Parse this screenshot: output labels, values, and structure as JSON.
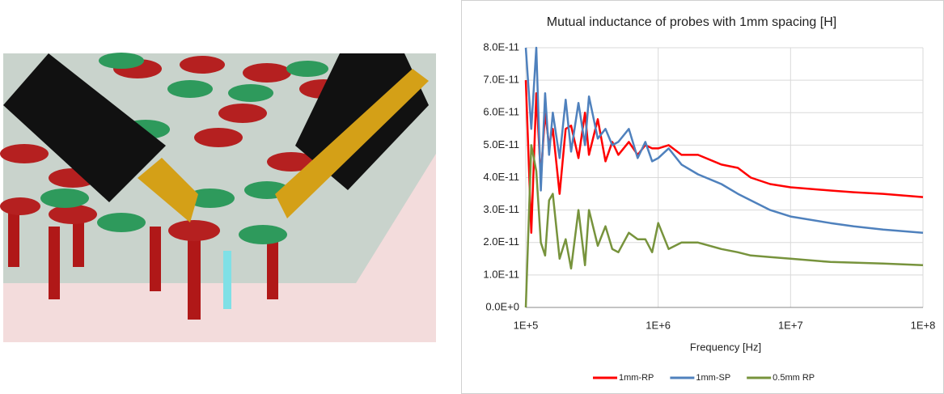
{
  "chart_data": {
    "type": "line",
    "title": "Mutual inductance of probes with 1mm spacing [H]",
    "x_label": "Frequency [Hz]",
    "x": [
      100000,
      110000,
      120000,
      130000,
      140000,
      150000,
      160000,
      180000,
      200000,
      220000,
      250000,
      280000,
      300000,
      350000,
      400000,
      450000,
      500000,
      600000,
      700000,
      800000,
      900000,
      1000000,
      1200000,
      1500000,
      2000000,
      3000000,
      4000000,
      5000000,
      7000000,
      10000000,
      20000000,
      30000000,
      50000000,
      100000000
    ],
    "series": [
      {
        "name": "1mm-RP",
        "color": "#ff0000",
        "values": [
          7e-11,
          2.3e-11,
          6.6e-11,
          4e-11,
          6e-11,
          5e-11,
          5.5e-11,
          3.5e-11,
          5.5e-11,
          5.6e-11,
          4.6e-11,
          6e-11,
          4.7e-11,
          5.8e-11,
          4.5e-11,
          5.1e-11,
          4.7e-11,
          5.1e-11,
          4.7e-11,
          5e-11,
          4.9e-11,
          4.9e-11,
          5e-11,
          4.7e-11,
          4.7e-11,
          4.4e-11,
          4.3e-11,
          4e-11,
          3.8e-11,
          3.7e-11,
          3.6e-11,
          3.55e-11,
          3.5e-11,
          3.4e-11
        ]
      },
      {
        "name": "1mm-SP",
        "color": "#4f81bd",
        "values": [
          8e-11,
          5.5e-11,
          8e-11,
          3.6e-11,
          6.6e-11,
          4.7e-11,
          6e-11,
          4.6e-11,
          6.4e-11,
          4.8e-11,
          6.3e-11,
          5e-11,
          6.5e-11,
          5.2e-11,
          5.5e-11,
          5e-11,
          5.1e-11,
          5.5e-11,
          4.6e-11,
          5.1e-11,
          4.5e-11,
          4.6e-11,
          4.9e-11,
          4.4e-11,
          4.1e-11,
          3.8e-11,
          3.5e-11,
          3.3e-11,
          3e-11,
          2.8e-11,
          2.6e-11,
          2.5e-11,
          2.4e-11,
          2.3e-11
        ]
      },
      {
        "name": "0.5mm RP",
        "color": "#77933c",
        "values": [
          0,
          5e-11,
          4.2e-11,
          2e-11,
          1.6e-11,
          3.3e-11,
          3.5e-11,
          1.5e-11,
          2.1e-11,
          1.2e-11,
          3e-11,
          1.3e-11,
          3e-11,
          1.9e-11,
          2.5e-11,
          1.8e-11,
          1.7e-11,
          2.3e-11,
          2.1e-11,
          2.1e-11,
          1.7e-11,
          2.6e-11,
          1.8e-11,
          2e-11,
          2e-11,
          1.8e-11,
          1.7e-11,
          1.6e-11,
          1.55e-11,
          1.5e-11,
          1.4e-11,
          1.38e-11,
          1.35e-11,
          1.3e-11
        ]
      }
    ],
    "xscale": "log",
    "xlim": [
      100000,
      100000000
    ],
    "xticks": [
      {
        "value": 100000,
        "label": "1E+5"
      },
      {
        "value": 1000000,
        "label": "1E+6"
      },
      {
        "value": 10000000,
        "label": "1E+7"
      },
      {
        "value": 100000000,
        "label": "1E+8"
      }
    ],
    "ylim": [
      0,
      8e-11
    ],
    "yticks": [
      {
        "value": 0,
        "label": "0.0E+0"
      },
      {
        "value": 1e-11,
        "label": "1.0E-11"
      },
      {
        "value": 2e-11,
        "label": "2.0E-11"
      },
      {
        "value": 3e-11,
        "label": "3.0E-11"
      },
      {
        "value": 4e-11,
        "label": "4.0E-11"
      },
      {
        "value": 5e-11,
        "label": "5.0E-11"
      },
      {
        "value": 6e-11,
        "label": "6.0E-11"
      },
      {
        "value": 7e-11,
        "label": "7.0E-11"
      },
      {
        "value": 8e-11,
        "label": "8.0E-11"
      }
    ],
    "grid": true,
    "legend": "bottom"
  }
}
